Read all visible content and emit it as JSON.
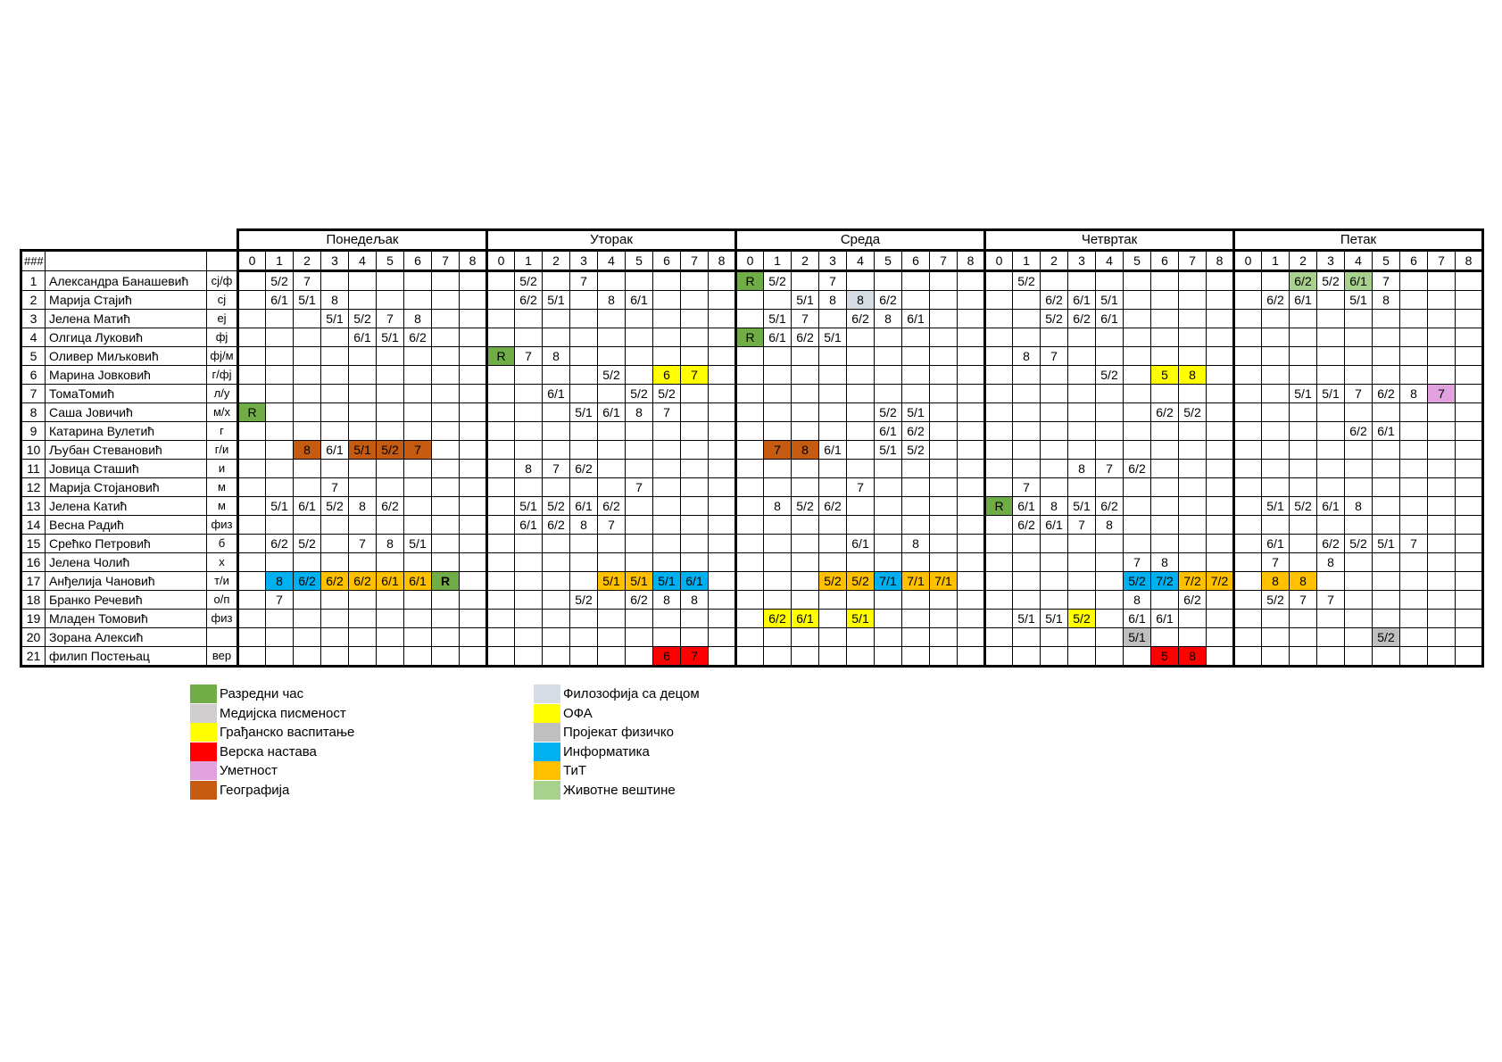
{
  "header": {
    "corner": "###",
    "periods": [
      "0",
      "1",
      "2",
      "3",
      "4",
      "5",
      "6",
      "7",
      "8"
    ]
  },
  "days": [
    "Понедељак",
    "Уторак",
    "Среда",
    "Четвртак",
    "Петак"
  ],
  "colors": {
    "green": "#70ad47",
    "ltgreen": "#a9d18e",
    "yellow": "#ffff00",
    "red": "#ff0000",
    "pink": "#e2a2e0",
    "brown": "#c55a11",
    "philos": "#d6dce4",
    "gray": "#bfbfbf",
    "ltgray": "#d0cece",
    "blue": "#00b0f0",
    "orange": "#ffc000"
  },
  "teachers": [
    {
      "num": "1",
      "name": "Александра Банашевић",
      "code": "сј/ф",
      "sched": [
        {
          "1": "5/2",
          "2": "7"
        },
        {
          "1": "5/2",
          "3": "7"
        },
        {
          "0": "R|green",
          "1": "5/2",
          "3": "7"
        },
        {
          "1": "5/2"
        },
        {
          "2": "6/2|ltgreen",
          "3": "5/2",
          "4": "6/1|ltgreen",
          "5": "7"
        }
      ]
    },
    {
      "num": "2",
      "name": "Марија Стајић",
      "code": "сј",
      "sched": [
        {
          "1": "6/1",
          "2": "5/1",
          "3": "8"
        },
        {
          "1": "6/2",
          "2": "5/1",
          "4": "8",
          "5": "6/1"
        },
        {
          "2": "5/1",
          "3": "8",
          "4": "8|philos",
          "5": "6/2"
        },
        {
          "2": "6/2",
          "3": "6/1",
          "4": "5/1"
        },
        {
          "1": "6/2",
          "2": "6/1",
          "4": "5/1",
          "5": "8"
        }
      ]
    },
    {
      "num": "3",
      "name": "Јелена Матић",
      "code": "еј",
      "sched": [
        {
          "3": "5/1",
          "4": "5/2",
          "5": "7",
          "6": "8"
        },
        {},
        {
          "1": "5/1",
          "2": "7",
          "4": "6/2",
          "5": "8",
          "6": "6/1"
        },
        {
          "2": "5/2",
          "3": "6/2",
          "4": "6/1"
        },
        {}
      ]
    },
    {
      "num": "4",
      "name": "Олгица Луковић",
      "code": "фј",
      "sched": [
        {
          "4": "6/1",
          "5": "5/1",
          "6": "6/2"
        },
        {},
        {
          "0": "R|green",
          "1": "6/1",
          "2": "6/2",
          "3": "5/1"
        },
        {},
        {}
      ]
    },
    {
      "num": "5",
      "name": "Оливер Миљковић",
      "code": "фј/м",
      "sched": [
        {},
        {
          "0": "R|green",
          "1": "7",
          "2": "8"
        },
        {},
        {
          "1": "8",
          "2": "7"
        },
        {}
      ]
    },
    {
      "num": "6",
      "name": "Марина Јовковић",
      "code": "г/фј",
      "sched": [
        {},
        {
          "4": "5/2",
          "6": "6|yellow",
          "7": "7|yellow"
        },
        {},
        {
          "4": "5/2",
          "6": "5|yellow",
          "7": "8|yellow"
        },
        {}
      ]
    },
    {
      "num": "7",
      "name": "ТомаТомић",
      "code": "л/у",
      "sched": [
        {},
        {
          "2": "6/1",
          "5": "5/2",
          "6": "5/2"
        },
        {},
        {},
        {
          "2": "5/1",
          "3": "5/1",
          "4": "7",
          "5": "6/2",
          "6": "8",
          "7": "7|pink"
        }
      ]
    },
    {
      "num": "8",
      "name": "Саша Јовичић",
      "code": "м/х",
      "sched": [
        {
          "0": "R|green"
        },
        {
          "3": "5/1",
          "4": "6/1",
          "5": "8",
          "6": "7"
        },
        {
          "5": "5/2",
          "6": "5/1"
        },
        {
          "6": "6/2",
          "7": "5/2"
        },
        {}
      ]
    },
    {
      "num": "9",
      "name": "Катарина Вулетић",
      "code": "г",
      "sched": [
        {},
        {},
        {
          "5": "6/1",
          "6": "6/2"
        },
        {},
        {
          "4": "6/2",
          "5": "6/1"
        }
      ]
    },
    {
      "num": "10",
      "name": "Љубан Стевановић",
      "code": "г/и",
      "sched": [
        {
          "2": "8|brown",
          "3": "6/1",
          "4": "5/1|brown",
          "5": "5/2|brown",
          "6": "7|brown"
        },
        {},
        {
          "1": "7|brown",
          "2": "8|brown",
          "3": "6/1",
          "5": "5/1",
          "6": "5/2"
        },
        {},
        {}
      ]
    },
    {
      "num": "11",
      "name": "Јовица Сташић",
      "code": "и",
      "sched": [
        {},
        {
          "1": "8",
          "2": "7",
          "3": "6/2"
        },
        {},
        {
          "3": "8",
          "4": "7",
          "5": "6/2"
        },
        {}
      ]
    },
    {
      "num": "12",
      "name": "Марија Стојановић",
      "code": "м",
      "sched": [
        {
          "3": "7"
        },
        {
          "5": "7"
        },
        {
          "4": "7"
        },
        {
          "1": "7"
        },
        {}
      ]
    },
    {
      "num": "13",
      "name": "Јелена Катић",
      "code": "м",
      "sched": [
        {
          "1": "5/1",
          "2": "6/1",
          "3": "5/2",
          "4": "8",
          "5": "6/2"
        },
        {
          "1": "5/1",
          "2": "5/2",
          "3": "6/1",
          "4": "6/2"
        },
        {
          "1": "8",
          "2": "5/2",
          "3": "6/2"
        },
        {
          "0": "R|green",
          "1": "6/1",
          "2": "8",
          "3": "5/1",
          "4": "6/2"
        },
        {
          "1": "5/1",
          "2": "5/2",
          "3": "6/1",
          "4": "8"
        }
      ]
    },
    {
      "num": "14",
      "name": "Весна Радић",
      "code": "физ",
      "sched": [
        {},
        {
          "1": "6/1",
          "2": "6/2",
          "3": "8",
          "4": "7"
        },
        {},
        {
          "1": "6/2",
          "2": "6/1",
          "3": "7",
          "4": "8"
        },
        {}
      ]
    },
    {
      "num": "15",
      "name": "Срећко Петровић",
      "code": "б",
      "sched": [
        {
          "1": "6/2",
          "2": "5/2",
          "4": "7",
          "5": "8",
          "6": "5/1"
        },
        {},
        {
          "4": "6/1",
          "6": "8"
        },
        {},
        {
          "1": "6/1",
          "3": "6/2",
          "4": "5/2",
          "5": "5/1",
          "6": "7"
        }
      ]
    },
    {
      "num": "16",
      "name": "Јелена Чолић",
      "code": "х",
      "sched": [
        {},
        {},
        {},
        {
          "5": "7",
          "6": "8"
        },
        {
          "1": "7",
          "3": "8"
        }
      ]
    },
    {
      "num": "17",
      "name": "Анђелија Чановић",
      "code": "т/и",
      "sched": [
        {
          "1": "8|blue",
          "2": "6/2|blue",
          "3": "6/2|orange",
          "4": "6/2|orange",
          "5": "6/1|orange",
          "6": "6/1|orange",
          "7": "R|green|b"
        },
        {
          "4": "5/1|orange",
          "5": "5/1|orange",
          "6": "5/1|blue",
          "7": "6/1|blue"
        },
        {
          "3": "5/2|orange",
          "4": "5/2|orange",
          "5": "7/1|blue",
          "6": "7/1|orange",
          "7": "7/1|orange"
        },
        {
          "5": "5/2|blue",
          "6": "7/2|blue",
          "7": "7/2|orange",
          "8": "7/2|orange"
        },
        {
          "1": "8|orange",
          "2": "8|orange"
        }
      ]
    },
    {
      "num": "18",
      "name": "Бранко Речевић",
      "code": "о/п",
      "sched": [
        {
          "1": "7"
        },
        {
          "3": "5/2",
          "5": "6/2",
          "6": "8",
          "7": "8"
        },
        {},
        {
          "5": "8",
          "7": "6/2"
        },
        {
          "1": "5/2",
          "2": "7",
          "3": "7"
        }
      ]
    },
    {
      "num": "19",
      "name": "Младен Томовић",
      "code": "физ",
      "sched": [
        {},
        {},
        {
          "1": "6/2|yellow",
          "2": "6/1|yellow",
          "4": "5/1|yellow"
        },
        {
          "1": "5/1",
          "2": "5/1",
          "3": "5/2|yellow",
          "5": "6/1",
          "6": "6/1"
        },
        {}
      ]
    },
    {
      "num": "20",
      "name": "Зорана Алексић",
      "code": "",
      "sched": [
        {},
        {},
        {},
        {
          "5": "5/1|gray"
        },
        {
          "5": "5/2|gray"
        }
      ]
    },
    {
      "num": "21",
      "name": "филип Постењац",
      "code": "вер",
      "sched": [
        {},
        {
          "6": "6|red",
          "7": "7|red"
        },
        {},
        {
          "6": "5|red",
          "7": "8|red"
        },
        {}
      ]
    }
  ],
  "legend": [
    [
      {
        "color": "green",
        "label": "Разредни час"
      },
      {
        "color": "ltgray",
        "label": "Медијска писменост"
      },
      {
        "color": "yellow",
        "label": "Грађанско васпитање"
      },
      {
        "color": "red",
        "label": "Верска настава"
      },
      {
        "color": "pink",
        "label": "Уметност"
      },
      {
        "color": "brown",
        "label": "Географија"
      }
    ],
    [
      {
        "color": "philos",
        "label": "Филозофија са децом"
      },
      {
        "color": "yellow",
        "label": "ОФА"
      },
      {
        "color": "gray",
        "label": "Пројекат физичко"
      },
      {
        "color": "blue",
        "label": "Информатика"
      },
      {
        "color": "orange",
        "label": "ТиТ"
      },
      {
        "color": "ltgreen",
        "label": "Животне вештине"
      }
    ]
  ]
}
